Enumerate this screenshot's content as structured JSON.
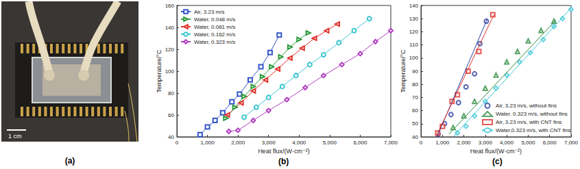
{
  "photo": {
    "scale_label": "1 cm",
    "label": "(a)"
  },
  "chart_data": [
    {
      "type": "line",
      "annotation": "(b)",
      "xlabel": "Heat flux/(W·cm⁻²)",
      "ylabel": "Temperature/°C",
      "xlim": [
        0,
        7000
      ],
      "xticks": [
        0,
        {
          "value": 1000,
          "label": "1,000"
        },
        {
          "value": 2000,
          "label": "2,000"
        },
        {
          "value": 3000,
          "label": "3,000"
        },
        {
          "value": 4000,
          "label": "4,000"
        },
        {
          "value": 5000,
          "label": "5,000"
        },
        {
          "value": 6000,
          "label": "6,000"
        },
        {
          "value": 7000,
          "label": "7,000"
        }
      ],
      "ylim": [
        40,
        160
      ],
      "yticks": [
        40,
        60,
        80,
        100,
        120,
        140,
        160
      ],
      "grid": false,
      "legend": "upper left",
      "series": [
        {
          "name": "Air, 3.23 m/s",
          "color": "#3456c8",
          "marker": "square",
          "line_style": "solid",
          "x": [
            760,
            1000,
            1250,
            1500,
            1800,
            2050,
            2400,
            2750,
            3050,
            3350
          ],
          "values": [
            42,
            49,
            55,
            62,
            72,
            79,
            92,
            104,
            117,
            133
          ]
        },
        {
          "name": "Water, 0.048 m/s",
          "color": "#2a9a3a",
          "marker": "triangle-right",
          "line_style": "solid",
          "x": [
            1600,
            1900,
            2200,
            2500,
            2800,
            3100,
            3400,
            3700,
            4000,
            4300
          ],
          "values": [
            57,
            67,
            77,
            86,
            95,
            104,
            113,
            122,
            129,
            135
          ]
        },
        {
          "name": "Water, 0.081 m/s",
          "color": "#e2302a",
          "marker": "triangle-left",
          "line_style": "solid",
          "x": [
            1650,
            2100,
            2500,
            2900,
            3300,
            3700,
            4100,
            4500,
            4900,
            5250
          ],
          "values": [
            60,
            71,
            82,
            92,
            102,
            112,
            121,
            130,
            137,
            143
          ]
        },
        {
          "name": "Water, 0.162 m/s",
          "color": "#3cc6d2",
          "marker": "circle",
          "line_style": "solid",
          "x": [
            2200,
            2600,
            3000,
            3450,
            3900,
            4350,
            4800,
            5300,
            5800,
            6300
          ],
          "values": [
            58,
            67,
            76,
            86,
            96,
            106,
            115,
            126,
            137,
            148
          ]
        },
        {
          "name": "Water, 0.323 m/s",
          "color": "#b03ec0",
          "marker": "diamond",
          "line_style": "solid",
          "x": [
            1700,
            2000,
            2500,
            3000,
            3600,
            4200,
            4800,
            5400,
            6000,
            6500,
            7000
          ],
          "values": [
            45,
            46,
            55,
            64,
            74,
            85,
            96,
            106,
            116,
            127,
            137
          ]
        }
      ]
    },
    {
      "type": "scatter",
      "annotation": "(c)",
      "xlabel": "Heat flux/(W·cm⁻²)",
      "ylabel": "Temperature/°C",
      "xlim": [
        0,
        7000
      ],
      "xticks": [
        0,
        {
          "value": 1000,
          "label": "1,000"
        },
        {
          "value": 2000,
          "label": "2,000"
        },
        {
          "value": 3000,
          "label": "3,000"
        },
        {
          "value": 4000,
          "label": "4,000"
        },
        {
          "value": 5000,
          "label": "5,000"
        },
        {
          "value": 6000,
          "label": "6,000"
        },
        {
          "value": 7000,
          "label": "7,000"
        }
      ],
      "ylim": [
        40,
        140
      ],
      "yticks": [
        40,
        50,
        60,
        70,
        80,
        90,
        100,
        110,
        120,
        130,
        140
      ],
      "grid": false,
      "legend": "lower right",
      "series": [
        {
          "name": "Air, 3.23 m/s, without fins",
          "color": "#2c3e9e",
          "marker": "circle",
          "x": [
            800,
            1100,
            1400,
            1750,
            2100,
            2500,
            2750,
            3050
          ],
          "values": [
            42,
            50,
            57,
            66,
            78,
            88,
            111,
            128
          ],
          "fit": {
            "x": [
              750,
              3100
            ],
            "values": [
              40,
              130
            ]
          }
        },
        {
          "name": "Water, 0.323 m/s, without fins",
          "color": "#2e8b3e",
          "marker": "triangle",
          "x": [
            1500,
            2000,
            2500,
            3000,
            3500,
            4000,
            4500,
            5000,
            5600,
            6200
          ],
          "values": [
            47,
            56,
            67,
            77,
            87,
            97,
            105,
            113,
            121,
            128
          ],
          "fit": {
            "x": [
              1300,
              6300
            ],
            "values": [
              42,
              129
            ]
          }
        },
        {
          "name": "Air, 3.23 m/s, with CNT fins",
          "color": "#e0302a",
          "marker": "square",
          "x": [
            780,
            1000,
            1450,
            1700,
            2200,
            2700,
            3350
          ],
          "values": [
            43,
            48,
            67,
            72,
            90,
            105,
            133
          ],
          "fit": {
            "x": [
              700,
              3400
            ],
            "values": [
              40,
              133
            ]
          }
        },
        {
          "name": "Water,0.323 m/s, with CNT fins",
          "color": "#40c8d8",
          "marker": "diamond",
          "x": [
            1700,
            2100,
            2500,
            3000,
            3500,
            4000,
            4600,
            5100,
            5700,
            6200,
            6600,
            7000
          ],
          "values": [
            43,
            48,
            56,
            67,
            77,
            87,
            97,
            104,
            114,
            124,
            130,
            137
          ],
          "fit": {
            "x": [
              1500,
              7000
            ],
            "values": [
              40,
              138
            ]
          }
        }
      ]
    }
  ]
}
